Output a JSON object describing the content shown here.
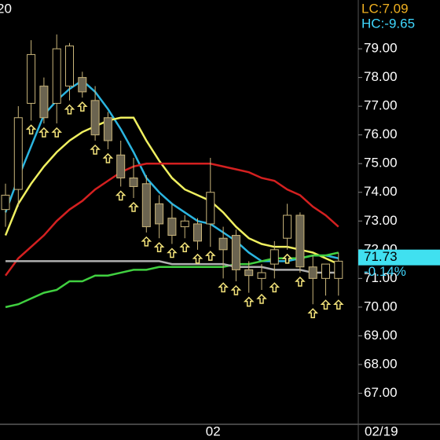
{
  "chart_data": {
    "type": "candlestick",
    "corner_label": "20",
    "lc_label": "LC:7.09",
    "hc_label": "HC:-9.65",
    "last_price": 71.73,
    "change_label": "-0.14%",
    "date_label": "02/19",
    "categories": [
      null,
      null,
      null,
      null,
      null,
      null,
      null,
      null,
      null,
      null,
      null,
      null,
      null,
      null,
      null,
      null,
      "02",
      null,
      null,
      null,
      null,
      null,
      null,
      null,
      null,
      null,
      null
    ],
    "open": [
      73.4,
      74.1,
      77.1,
      77.7,
      77.1,
      77.7,
      78.0,
      77.2,
      76.6,
      75.3,
      74.5,
      74.3,
      73.6,
      73.1,
      72.8,
      72.9,
      72.9,
      72.4,
      72.5,
      71.3,
      71.0,
      71.5,
      72.4,
      73.2,
      71.4,
      71.0,
      71.0
    ],
    "high": [
      74.3,
      77.0,
      79.3,
      78.0,
      79.5,
      79.2,
      78.2,
      77.7,
      76.8,
      75.8,
      75.2,
      74.6,
      73.9,
      73.6,
      73.2,
      73.1,
      75.2,
      72.8,
      72.7,
      71.6,
      71.5,
      72.3,
      73.6,
      73.3,
      71.8,
      71.5,
      71.9
    ],
    "low": [
      72.8,
      73.5,
      76.5,
      76.4,
      76.4,
      77.2,
      77.3,
      75.8,
      75.5,
      74.2,
      73.8,
      72.6,
      72.4,
      72.2,
      72.4,
      72.0,
      72.1,
      71.0,
      70.9,
      70.5,
      70.6,
      71.0,
      72.0,
      71.2,
      70.1,
      70.4,
      70.4
    ],
    "close": [
      73.9,
      76.6,
      78.8,
      76.6,
      79.0,
      79.1,
      77.5,
      76.0,
      75.8,
      74.5,
      74.2,
      72.8,
      72.9,
      72.5,
      73.0,
      72.3,
      74.0,
      72.0,
      71.3,
      71.1,
      71.2,
      72.0,
      73.2,
      71.4,
      71.0,
      71.5,
      71.6
    ],
    "candle_color": "#c9b57a",
    "arrow_color": "#f2e27a",
    "series": [
      {
        "color": "#2bb5e0",
        "values": [
          73.3,
          74.5,
          75.6,
          76.7,
          77.2,
          77.6,
          77.9,
          77.5,
          76.9,
          76.2,
          75.4,
          74.5,
          74.0,
          73.6,
          73.3,
          73.0,
          72.9,
          72.6,
          72.3,
          71.9,
          71.6,
          71.6,
          71.6,
          71.7,
          71.8,
          71.8,
          71.7
        ]
      },
      {
        "color": "#f0f060",
        "values": [
          72.5,
          73.6,
          74.3,
          74.9,
          75.4,
          75.8,
          76.1,
          76.3,
          76.5,
          76.6,
          76.6,
          75.8,
          75.1,
          74.5,
          74.1,
          73.9,
          73.7,
          73.3,
          72.8,
          72.4,
          72.2,
          72.1,
          72.1,
          72.0,
          71.9,
          71.7,
          71.5
        ]
      },
      {
        "color": "#d42020",
        "values": [
          71.1,
          71.7,
          72.1,
          72.5,
          73.0,
          73.4,
          73.7,
          74.1,
          74.4,
          74.7,
          74.9,
          75.0,
          75.0,
          75.0,
          75.0,
          75.0,
          75.0,
          74.9,
          74.8,
          74.7,
          74.5,
          74.4,
          74.1,
          73.9,
          73.5,
          73.2,
          72.8
        ]
      },
      {
        "color": "#40d040",
        "values": [
          70.0,
          70.1,
          70.3,
          70.5,
          70.6,
          70.9,
          70.9,
          71.1,
          71.1,
          71.2,
          71.3,
          71.3,
          71.4,
          71.4,
          71.4,
          71.4,
          71.4,
          71.4,
          71.5,
          71.5,
          71.6,
          71.7,
          71.7,
          71.7,
          71.8,
          71.8,
          71.9
        ]
      },
      {
        "color": "#b0b0b0",
        "values": [
          71.6,
          71.6,
          71.6,
          71.6,
          71.6,
          71.6,
          71.6,
          71.6,
          71.6,
          71.6,
          71.6,
          71.6,
          71.6,
          71.5,
          71.5,
          71.5,
          71.5,
          71.5,
          71.4,
          71.4,
          71.4,
          71.3,
          71.3,
          71.3,
          71.2,
          71.2,
          71.2
        ]
      }
    ],
    "ylim": [
      66,
      80.7
    ],
    "yticks": [
      {
        "value": 67,
        "label": "67.00"
      },
      {
        "value": 68,
        "label": "68.00"
      },
      {
        "value": 69,
        "label": "69.00"
      },
      {
        "value": 70,
        "label": "70.00"
      },
      {
        "value": 71,
        "label": "71.00"
      },
      {
        "value": 72,
        "label": "72.00"
      },
      {
        "value": 73,
        "label": "73.00"
      },
      {
        "value": 74,
        "label": "74.00"
      },
      {
        "value": 75,
        "label": "75.00"
      },
      {
        "value": 76,
        "label": "76.00"
      },
      {
        "value": 77,
        "label": "77.00"
      },
      {
        "value": 78,
        "label": "78.00"
      },
      {
        "value": 79,
        "label": "79.00"
      }
    ]
  }
}
